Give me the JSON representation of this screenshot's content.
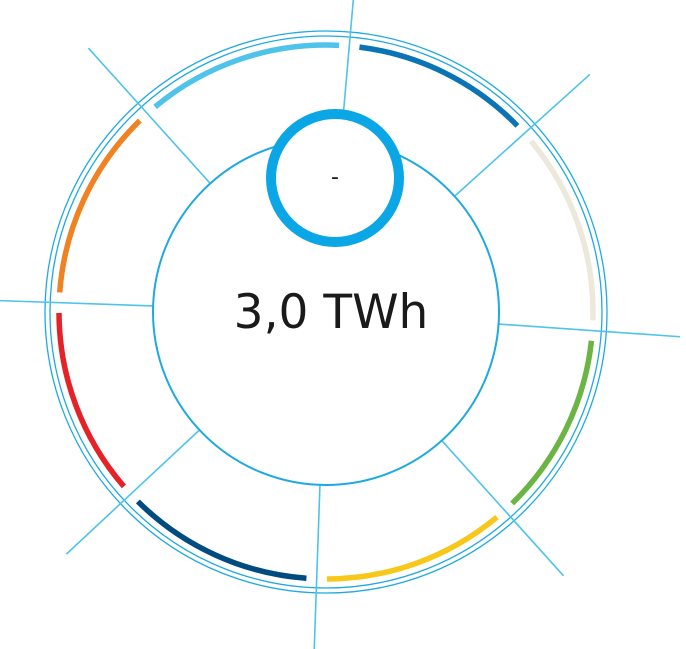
{
  "center": {
    "total_label": "3,0 TWh",
    "badge_label": "-"
  },
  "colors": {
    "outline": "#1ea9e1",
    "divider": "#4fc3ea",
    "badge_ring": "#0aa6e6"
  },
  "segments": [
    {
      "id": "segment-1",
      "color": "#0a74b7"
    },
    {
      "id": "segment-2",
      "color": "#ece8dc"
    },
    {
      "id": "segment-3",
      "color": "#6ab543"
    },
    {
      "id": "segment-4",
      "color": "#f7c81a"
    },
    {
      "id": "segment-5",
      "color": "#004b80"
    },
    {
      "id": "segment-6",
      "color": "#e42328"
    },
    {
      "id": "segment-7",
      "color": "#ef8222"
    },
    {
      "id": "segment-8",
      "color": "#4fc3ea"
    }
  ]
}
